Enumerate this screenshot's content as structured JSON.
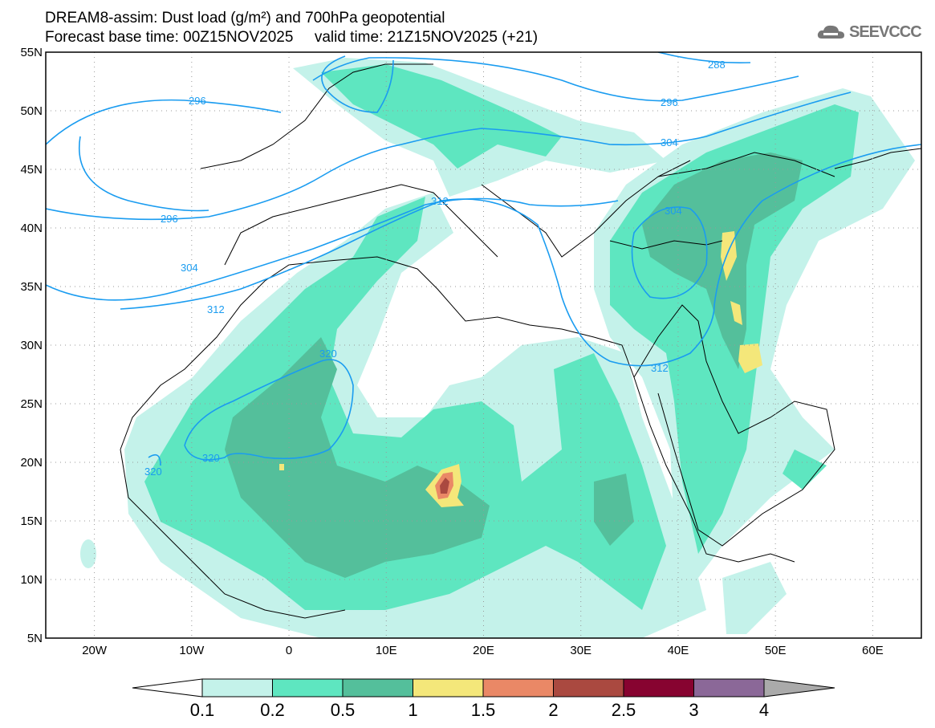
{
  "title_line1": "DREAM8-assim: Dust load (g/m²) and 700hPa geopotential",
  "title_line2": "Forecast base time: 00Z15NOV2025     valid time: 21Z15NOV2025 (+21)",
  "logo_text": "SEEVCCC",
  "map": {
    "lat_labels": [
      "55N",
      "50N",
      "45N",
      "40N",
      "35N",
      "30N",
      "25N",
      "20N",
      "15N",
      "10N",
      "5N"
    ],
    "lon_labels": [
      "20W",
      "10W",
      "0",
      "10E",
      "20E",
      "30E",
      "40E",
      "50E",
      "60E"
    ],
    "contour_color": "#1a9cf0",
    "contour_labels": [
      "288",
      "296",
      "296",
      "296",
      "304",
      "304",
      "304",
      "312",
      "312",
      "312",
      "320",
      "320",
      "320"
    ]
  },
  "colorbar": {
    "levels": [
      "0.1",
      "0.2",
      "0.5",
      "1",
      "1.5",
      "2",
      "2.5",
      "3",
      "4"
    ],
    "colors": [
      "#c4f2ea",
      "#5ee6c0",
      "#54bf9b",
      "#f4e77a",
      "#ea8866",
      "#aa4940",
      "#870330",
      "#8b6898"
    ],
    "over_color": "#aaaaaa"
  }
}
